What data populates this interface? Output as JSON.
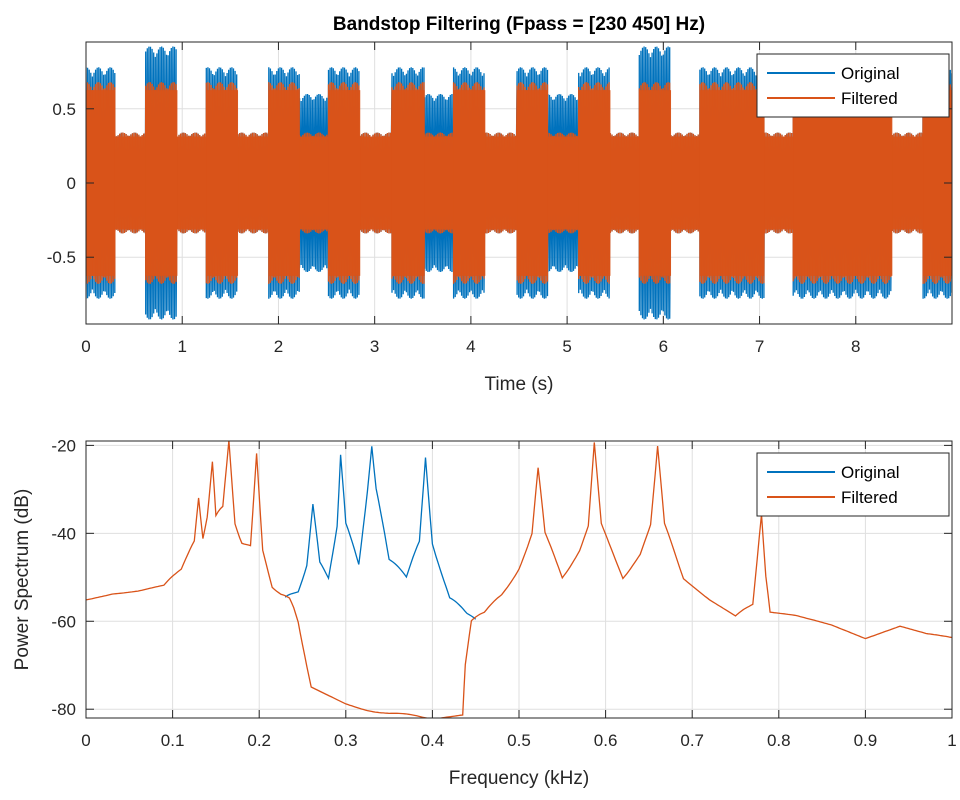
{
  "colors": {
    "original": "#0072BD",
    "filtered": "#D95319",
    "grid": "#DFDFDF",
    "axis": "#262626"
  },
  "chart_data": [
    {
      "type": "line",
      "title": "Bandstop Filtering  (Fpass = [230 450] Hz)",
      "xlabel": "Time (s)",
      "ylabel": "",
      "xlim": [
        0,
        9
      ],
      "ylim": [
        -0.95,
        0.95
      ],
      "xticks": [
        0,
        1,
        2,
        3,
        4,
        5,
        6,
        7,
        8
      ],
      "yticks": [
        -0.5,
        0,
        0.5
      ],
      "xticklabels": [
        "0",
        "1",
        "2",
        "3",
        "4",
        "5",
        "6",
        "7",
        "8"
      ],
      "yticklabels": [
        "-0.5",
        "0",
        "0.5"
      ],
      "grid": true,
      "legend": {
        "location": "top-right",
        "entries": [
          "Original",
          "Filtered"
        ]
      },
      "series": [
        {
          "name": "Original",
          "envelope": {
            "segments": [
              [
                0.0,
                0.3,
                0.78
              ],
              [
                0.3,
                0.62,
                0.34
              ],
              [
                0.62,
                0.95,
                0.92
              ],
              [
                0.95,
                1.25,
                0.34
              ],
              [
                1.25,
                1.58,
                0.78
              ],
              [
                1.58,
                1.9,
                0.34
              ],
              [
                1.9,
                2.22,
                0.78
              ],
              [
                2.22,
                2.52,
                0.6
              ],
              [
                2.52,
                2.85,
                0.78
              ],
              [
                2.85,
                3.18,
                0.34
              ],
              [
                3.18,
                3.52,
                0.78
              ],
              [
                3.52,
                3.82,
                0.6
              ],
              [
                3.82,
                4.15,
                0.78
              ],
              [
                4.15,
                4.48,
                0.34
              ],
              [
                4.48,
                4.8,
                0.78
              ],
              [
                4.8,
                5.12,
                0.6
              ],
              [
                5.12,
                5.45,
                0.78
              ],
              [
                5.45,
                5.75,
                0.34
              ],
              [
                5.75,
                6.08,
                0.92
              ],
              [
                6.08,
                6.38,
                0.34
              ],
              [
                6.38,
                7.05,
                0.78
              ],
              [
                7.05,
                7.35,
                0.34
              ],
              [
                7.35,
                8.38,
                0.78
              ],
              [
                8.38,
                8.7,
                0.34
              ],
              [
                8.7,
                9.0,
                0.78
              ]
            ]
          }
        },
        {
          "name": "Filtered",
          "envelope": {
            "segments": [
              [
                0.0,
                0.3,
                0.68
              ],
              [
                0.3,
                0.62,
                0.34
              ],
              [
                0.62,
                0.95,
                0.68
              ],
              [
                0.95,
                1.25,
                0.34
              ],
              [
                1.25,
                1.58,
                0.68
              ],
              [
                1.58,
                1.9,
                0.34
              ],
              [
                1.9,
                2.22,
                0.68
              ],
              [
                2.22,
                2.52,
                0.34
              ],
              [
                2.52,
                2.85,
                0.68
              ],
              [
                2.85,
                3.18,
                0.34
              ],
              [
                3.18,
                3.52,
                0.68
              ],
              [
                3.52,
                3.82,
                0.34
              ],
              [
                3.82,
                4.15,
                0.68
              ],
              [
                4.15,
                4.48,
                0.34
              ],
              [
                4.48,
                4.8,
                0.68
              ],
              [
                4.8,
                5.12,
                0.34
              ],
              [
                5.12,
                5.45,
                0.68
              ],
              [
                5.45,
                5.75,
                0.34
              ],
              [
                5.75,
                6.08,
                0.68
              ],
              [
                6.08,
                6.38,
                0.34
              ],
              [
                6.38,
                7.05,
                0.68
              ],
              [
                7.05,
                7.35,
                0.34
              ],
              [
                7.35,
                8.38,
                0.68
              ],
              [
                8.38,
                8.7,
                0.34
              ],
              [
                8.7,
                9.0,
                0.68
              ]
            ]
          }
        }
      ]
    },
    {
      "type": "line",
      "title": "",
      "xlabel": "Frequency (kHz)",
      "ylabel": "Power Spectrum (dB)",
      "xlim": [
        0,
        1
      ],
      "ylim": [
        -82,
        -19
      ],
      "xticks": [
        0,
        0.1,
        0.2,
        0.3,
        0.4,
        0.5,
        0.6,
        0.7,
        0.8,
        0.9,
        1
      ],
      "yticks": [
        -80,
        -60,
        -40,
        -20
      ],
      "xticklabels": [
        "0",
        "0.1",
        "0.2",
        "0.3",
        "0.4",
        "0.5",
        "0.6",
        "0.7",
        "0.8",
        "0.9",
        "1"
      ],
      "yticklabels": [
        "-80",
        "-60",
        "-40",
        "-20"
      ],
      "grid": true,
      "legend": {
        "location": "top-right",
        "entries": [
          "Original",
          "Filtered"
        ]
      },
      "series": [
        {
          "name": "Original",
          "x": [
            0.23,
            0.245,
            0.255,
            0.262,
            0.27,
            0.28,
            0.29,
            0.294,
            0.3,
            0.315,
            0.325,
            0.33,
            0.335,
            0.35,
            0.37,
            0.385,
            0.392,
            0.4,
            0.42,
            0.44,
            0.45
          ],
          "y": [
            -55,
            -53,
            -47,
            -33,
            -47,
            -50,
            -38,
            -22,
            -38,
            -47,
            -30,
            -20,
            -30,
            -46,
            -50,
            -42,
            -23,
            -42,
            -55,
            -58,
            -60
          ]
        },
        {
          "name": "Filtered",
          "x": [
            0.0,
            0.03,
            0.06,
            0.09,
            0.11,
            0.125,
            0.13,
            0.135,
            0.14,
            0.146,
            0.15,
            0.158,
            0.165,
            0.172,
            0.18,
            0.19,
            0.197,
            0.204,
            0.215,
            0.225,
            0.235,
            0.24,
            0.245,
            0.26,
            0.3,
            0.35,
            0.4,
            0.435,
            0.438,
            0.445,
            0.46,
            0.48,
            0.5,
            0.515,
            0.522,
            0.53,
            0.55,
            0.57,
            0.58,
            0.587,
            0.595,
            0.62,
            0.64,
            0.652,
            0.66,
            0.668,
            0.69,
            0.72,
            0.75,
            0.77,
            0.78,
            0.785,
            0.79,
            0.82,
            0.86,
            0.9,
            0.94,
            0.97,
            1.0
          ],
          "y": [
            -55,
            -53.5,
            -53,
            -52,
            -48,
            -42,
            -32,
            -41,
            -36,
            -24,
            -36,
            -34,
            -19,
            -38,
            -42,
            -43,
            -22,
            -44,
            -52,
            -54,
            -55,
            -57,
            -60,
            -75,
            -79,
            -81,
            -82,
            -81,
            -70,
            -60,
            -58,
            -54,
            -48,
            -40,
            -25,
            -40,
            -50,
            -44,
            -38,
            -19,
            -38,
            -50,
            -45,
            -38,
            -20,
            -38,
            -50,
            -55,
            -59,
            -56,
            -36,
            -50,
            -58,
            -59,
            -61,
            -64,
            -61,
            -63,
            -64
          ]
        }
      ]
    }
  ]
}
